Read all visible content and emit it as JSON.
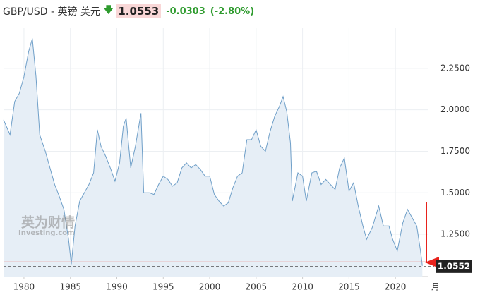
{
  "header": {
    "title": "GBP/USD - 英镑 美元",
    "price": "1.0553",
    "change": "-0.0303",
    "change_pct": "(-2.80%)"
  },
  "chart_data": {
    "type": "line",
    "watermark": {
      "brand": "英为财情",
      "site": "Investing.com"
    },
    "x_unit_label": "月",
    "xlim": [
      1977.8,
      2023.56
    ],
    "xticks": [
      1980,
      1985,
      1990,
      1995,
      2000,
      2005,
      2010,
      2015,
      2020
    ],
    "ylim": [
      0.995,
      2.492
    ],
    "yticks": [
      {
        "value": 1.25,
        "label": "1.2500"
      },
      {
        "value": 1.5,
        "label": "1.5000"
      },
      {
        "value": 1.75,
        "label": "1.7500"
      },
      {
        "value": 2.0,
        "label": "2.0000"
      },
      {
        "value": 2.25,
        "label": "2.2500"
      }
    ],
    "grid": true,
    "last_price": 1.0552,
    "previous_close_line": 1.084,
    "series": [
      {
        "color": "#6f9fc8",
        "x": [
          1977.8,
          1978.5,
          1979,
          1979.5,
          1980,
          1980.5,
          1980.9,
          1981.3,
          1981.7,
          1982.3,
          1982.8,
          1983.3,
          1983.8,
          1984.3,
          1984.8,
          1985.1,
          1985.5,
          1986,
          1986.5,
          1987,
          1987.5,
          1987.9,
          1988.3,
          1988.8,
          1989.3,
          1989.8,
          1990.3,
          1990.7,
          1991,
          1991.5,
          1992,
          1992.6,
          1992.9,
          1993.5,
          1994,
          1994.5,
          1995,
          1995.5,
          1996,
          1996.5,
          1997,
          1997.5,
          1998,
          1998.5,
          1999,
          1999.5,
          2000,
          2000.5,
          2001,
          2001.5,
          2002,
          2002.5,
          2003,
          2003.5,
          2004,
          2004.5,
          2005,
          2005.5,
          2006,
          2006.5,
          2007,
          2007.5,
          2007.9,
          2008.3,
          2008.7,
          2008.9,
          2009.5,
          2010,
          2010.4,
          2011,
          2011.5,
          2012,
          2012.5,
          2013,
          2013.5,
          2014,
          2014.5,
          2015,
          2015.5,
          2016,
          2016.5,
          2016.9,
          2017.5,
          2018.2,
          2018.7,
          2019.3,
          2019.7,
          2020.2,
          2020.8,
          2021.3,
          2021.8,
          2022.3,
          2022.7,
          2022.9
        ],
        "values": [
          1.94,
          1.85,
          2.05,
          2.1,
          2.2,
          2.35,
          2.43,
          2.2,
          1.85,
          1.75,
          1.65,
          1.55,
          1.48,
          1.4,
          1.22,
          1.07,
          1.3,
          1.45,
          1.5,
          1.55,
          1.62,
          1.88,
          1.78,
          1.72,
          1.65,
          1.57,
          1.68,
          1.9,
          1.95,
          1.65,
          1.78,
          1.98,
          1.5,
          1.5,
          1.49,
          1.55,
          1.6,
          1.58,
          1.54,
          1.56,
          1.65,
          1.68,
          1.65,
          1.67,
          1.64,
          1.6,
          1.6,
          1.49,
          1.45,
          1.42,
          1.44,
          1.53,
          1.6,
          1.62,
          1.82,
          1.82,
          1.88,
          1.78,
          1.75,
          1.87,
          1.96,
          2.02,
          2.08,
          1.99,
          1.8,
          1.45,
          1.62,
          1.6,
          1.45,
          1.62,
          1.63,
          1.55,
          1.58,
          1.55,
          1.52,
          1.65,
          1.71,
          1.51,
          1.56,
          1.42,
          1.3,
          1.22,
          1.29,
          1.42,
          1.3,
          1.3,
          1.22,
          1.15,
          1.32,
          1.4,
          1.35,
          1.3,
          1.15,
          1.06
        ]
      }
    ]
  }
}
